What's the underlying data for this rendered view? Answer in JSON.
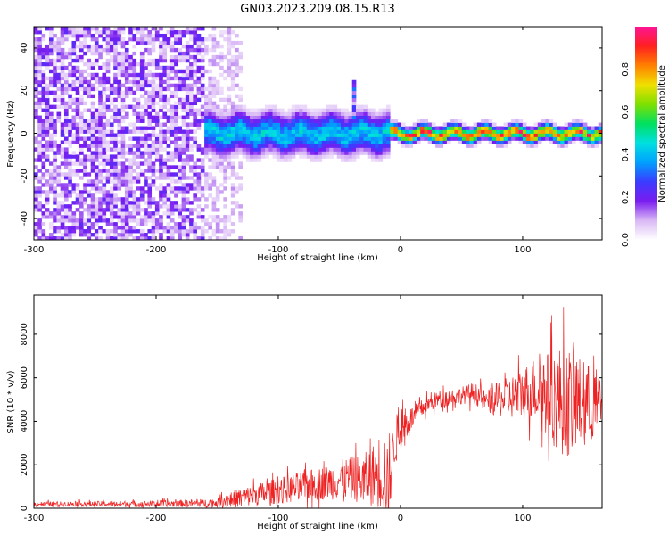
{
  "title": "GN03.2023.209.08.15.R13",
  "chart_data": [
    {
      "type": "heatmap",
      "xlabel": "Height of straight line (km)",
      "ylabel": "Frequency (Hz)",
      "xlim": [
        -300,
        165
      ],
      "ylim": [
        -50,
        50
      ],
      "x_ticks": [
        -300,
        -200,
        -100,
        0,
        100
      ],
      "y_ticks": [
        -40,
        -20,
        0,
        20,
        40
      ],
      "colorbar": {
        "label": "Normalized spectral amplitude",
        "range": [
          0,
          1
        ],
        "ticks": [
          0.0,
          0.2,
          0.4,
          0.6,
          0.8
        ],
        "colors": [
          "#ffffff",
          "#d9b8f5",
          "#7a1cf0",
          "#3a3cff",
          "#00a0ff",
          "#00e0e0",
          "#00e060",
          "#7fe000",
          "#f0e000",
          "#ff8000",
          "#ff2020",
          "#ff1493"
        ]
      },
      "regions": [
        {
          "name": "noise",
          "x": [
            -300,
            -160
          ],
          "f_range": [
            -50,
            50
          ],
          "amplitude": 0.15
        },
        {
          "name": "transition",
          "x": [
            -160,
            -130
          ],
          "f_range": [
            -50,
            50
          ],
          "amplitude": 0.08
        },
        {
          "name": "broadband-signal",
          "x": [
            -160,
            -10
          ],
          "f_center": 0,
          "f_halfwidth": 8,
          "amplitude": 0.45
        },
        {
          "name": "spike",
          "x": [
            -40,
            -35
          ],
          "f_range": [
            0,
            25
          ],
          "amplitude": 0.25
        },
        {
          "name": "narrowband-signal",
          "x": [
            -10,
            165
          ],
          "f_center": 0,
          "f_halfwidth": 3,
          "amplitude": 0.9
        }
      ]
    },
    {
      "type": "line",
      "xlabel": "Height of straight line (km)",
      "ylabel": "SNR (10 * v/v)",
      "xlim": [
        -300,
        165
      ],
      "ylim": [
        0,
        9800
      ],
      "x_ticks": [
        -300,
        -200,
        -100,
        0,
        100
      ],
      "y_ticks": [
        0,
        2000,
        4000,
        6000,
        8000
      ],
      "color": "#ee2222",
      "envelope": {
        "x": [
          -300,
          -200,
          -150,
          -140,
          -120,
          -100,
          -80,
          -60,
          -40,
          -30,
          -20,
          -15,
          -12,
          -10,
          -5,
          0,
          10,
          20,
          30,
          40,
          50,
          60,
          70,
          80,
          90,
          100,
          110,
          120,
          130,
          140,
          150,
          165
        ],
        "mean": [
          200,
          200,
          250,
          400,
          600,
          800,
          1000,
          1200,
          1400,
          1300,
          1600,
          1800,
          1200,
          800,
          3000,
          3600,
          4200,
          4700,
          5000,
          5100,
          5200,
          5300,
          4900,
          5000,
          5100,
          5300,
          5500,
          5200,
          5000,
          4800,
          4800,
          4800
        ],
        "amplitude": [
          100,
          150,
          200,
          400,
          500,
          600,
          700,
          800,
          1000,
          1200,
          1500,
          2000,
          2500,
          1500,
          1200,
          1000,
          500,
          400,
          400,
          400,
          400,
          500,
          500,
          800,
          1000,
          1200,
          1500,
          2000,
          2500,
          2500,
          2000,
          1500
        ]
      }
    }
  ]
}
